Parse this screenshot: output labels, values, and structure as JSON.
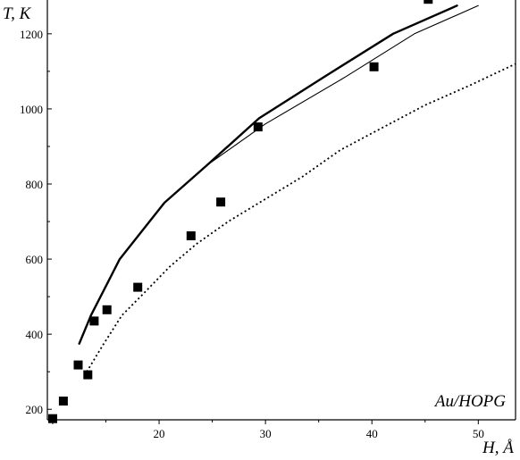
{
  "chart_data": {
    "type": "line",
    "ylabel": "T, K",
    "xlabel": "H, Å",
    "annotation": "Au/HOPG",
    "xlim": [
      9.5,
      53.5
    ],
    "ylim": [
      172,
      1290
    ],
    "xticks": [
      20,
      30,
      40,
      50
    ],
    "yticks": [
      200,
      400,
      600,
      800,
      1000,
      1200
    ],
    "grid": false,
    "frame_sides": [
      "left",
      "bottom",
      "right"
    ],
    "series": [
      {
        "style": "solid-thick",
        "x": [
          12.5,
          13.6,
          16.3,
          20.5,
          24.5,
          29.4,
          35.5,
          42.0,
          48.0
        ],
        "y": [
          375,
          450,
          600,
          750,
          850,
          975,
          1085,
          1200,
          1275
        ]
      },
      {
        "style": "solid-thin",
        "x": [
          24.5,
          30.0,
          37.5,
          44.0,
          50.0
        ],
        "y": [
          850,
          960,
          1085,
          1200,
          1275
        ]
      },
      {
        "style": "dotted",
        "x": [
          13.2,
          14.7,
          16.5,
          18.6,
          21.0,
          23.5,
          26.5,
          30.0,
          33.5,
          37.0,
          41.0,
          45.0,
          49.0,
          53.5
        ],
        "y": [
          300,
          370,
          450,
          510,
          580,
          640,
          700,
          760,
          820,
          890,
          950,
          1010,
          1060,
          1120
        ]
      },
      {
        "style": "markers",
        "x": [
          10.0,
          11.0,
          12.4,
          13.3,
          13.9,
          15.1,
          18.0,
          23.0,
          25.8,
          29.3,
          40.2,
          45.3
        ],
        "y": [
          175,
          222,
          318,
          292,
          435,
          465,
          525,
          662,
          752,
          952,
          1112,
          1292
        ]
      }
    ]
  }
}
